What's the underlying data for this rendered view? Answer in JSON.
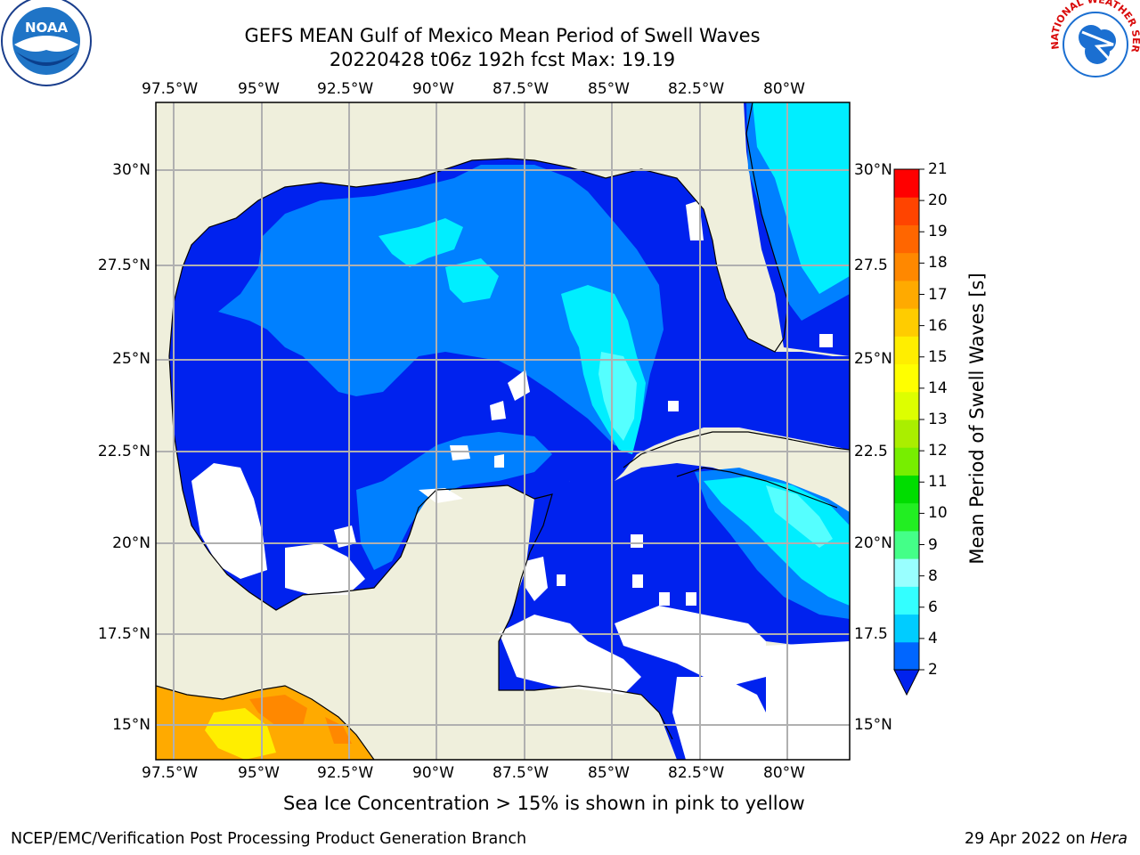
{
  "title": {
    "line1": "GEFS MEAN Gulf of Mexico Mean Period of Swell Waves",
    "line2": "20220428 t06z 192h fcst   Max: 19.19"
  },
  "axes": {
    "lon_labels": [
      "97.5°W",
      "95°W",
      "92.5°W",
      "90°W",
      "87.5°W",
      "85°W",
      "82.5°W",
      "80°W"
    ],
    "lat_labels_left": [
      "30°N",
      "27.5°N",
      "25°N",
      "22.5°N",
      "20°N",
      "17.5°N",
      "15°N"
    ],
    "lat_labels_right": [
      "30°N",
      "27.5",
      "25°N",
      "22.5",
      "20°N",
      "17.5",
      "15°N"
    ]
  },
  "colorbar": {
    "label": "Mean Period of Swell Waves [s]",
    "ticks": [
      "21",
      "20",
      "19",
      "18",
      "17",
      "16",
      "15",
      "14",
      "13",
      "12",
      "11",
      "10",
      "9",
      "8",
      "6",
      "4",
      "2"
    ],
    "colors": [
      "#0066ff",
      "#00ccff",
      "#33ffff",
      "#99ffff",
      "#44ff88",
      "#22ee22",
      "#00dd00",
      "#77ee00",
      "#aaee00",
      "#ddff00",
      "#ffff00",
      "#ffee00",
      "#ffcc00",
      "#ffaa00",
      "#ff8800",
      "#ff6600",
      "#ff4400",
      "#ff0000"
    ]
  },
  "map_colors": {
    "land": "#efefdc",
    "ocean_low": "#0022ee",
    "ocean_mid": "#0080ff",
    "ocean_high": "#00eeff",
    "ocean_peak": "#55ffff",
    "ice_orange": "#ffaa00",
    "ice_yellow": "#ffee00",
    "ice_dark": "#ff8800"
  },
  "caption": "Sea Ice Concentration > 15% is shown in pink to yellow",
  "footer": {
    "left": "NCEP/EMC/Verification Post Processing Product Generation Branch",
    "date": "29 Apr 2022 on ",
    "host": "Hera"
  },
  "logos": {
    "noaa_text": "NOAA",
    "nws_text": "NATIONAL WEATHER SERVICE"
  }
}
